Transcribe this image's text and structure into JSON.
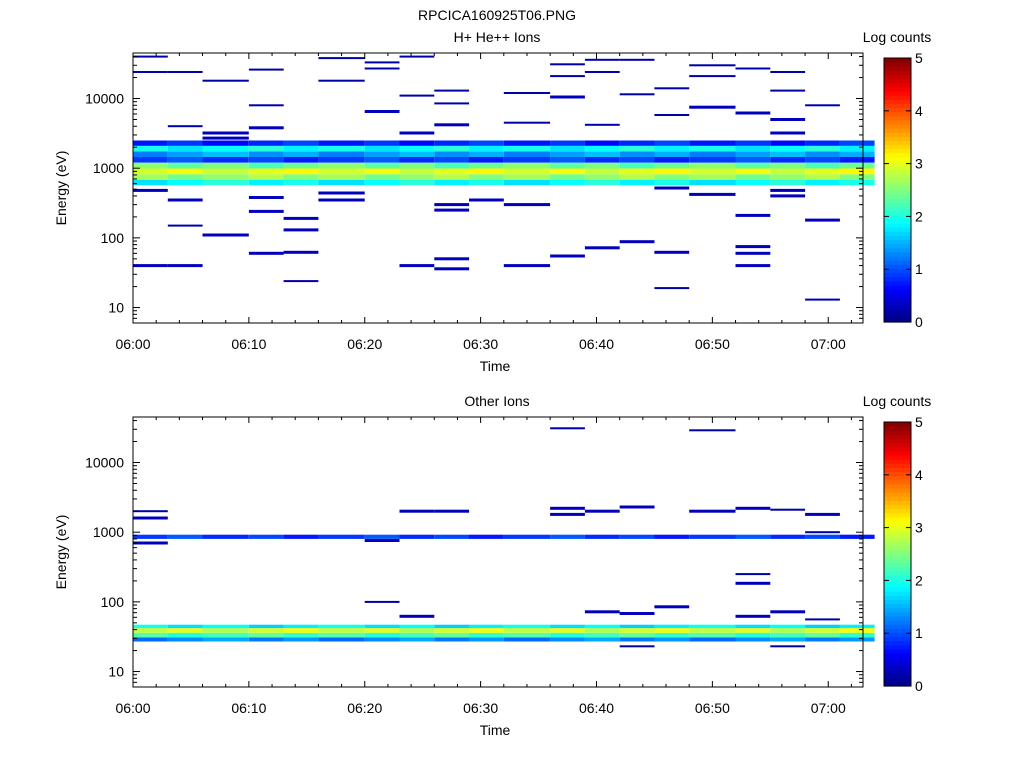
{
  "figure_title": "RPCICA160925T06.PNG",
  "chart_data": [
    {
      "type": "heatmap",
      "title": "H+ He++ Ions",
      "xlabel": "Time",
      "ylabel": "Energy (eV)",
      "x_ticks": [
        "06:00",
        "06:10",
        "06:20",
        "06:30",
        "06:40",
        "06:50",
        "07:00"
      ],
      "x_range": [
        "06:00",
        "07:03"
      ],
      "y_scale": "log",
      "y_ticks": [
        "10",
        "100",
        "1000",
        "10000"
      ],
      "y_range": [
        6,
        45000
      ],
      "colorbar": {
        "label": "Log counts",
        "min": 0,
        "max": 5,
        "ticks": [
          "0",
          "1",
          "2",
          "3",
          "4",
          "5"
        ]
      },
      "time_bins": [
        "06:00",
        "06:03",
        "06:06",
        "06:10",
        "06:13",
        "06:16",
        "06:20",
        "06:23",
        "06:26",
        "06:29",
        "06:32",
        "06:36",
        "06:39",
        "06:42",
        "06:45",
        "06:48",
        "06:52",
        "06:55",
        "06:58",
        "07:01"
      ],
      "bands": [
        {
          "emin": 570,
          "emax": 680,
          "value": 1.9
        },
        {
          "emin": 680,
          "emax": 820,
          "value": 2.6
        },
        {
          "emin": 820,
          "emax": 990,
          "value": 3.0
        },
        {
          "emin": 990,
          "emax": 1200,
          "value": 2.4
        },
        {
          "emin": 1200,
          "emax": 1450,
          "value": 0.9
        },
        {
          "emin": 1450,
          "emax": 1750,
          "value": 1.4
        },
        {
          "emin": 1750,
          "emax": 2100,
          "value": 1.9
        },
        {
          "emin": 2100,
          "emax": 2500,
          "value": 0.8
        }
      ],
      "blips": [
        {
          "t": 0,
          "e": 40000,
          "v": 0.2
        },
        {
          "t": 0,
          "e": 24000,
          "v": 0.2
        },
        {
          "t": 0,
          "e": 480,
          "v": 0.3
        },
        {
          "t": 0,
          "e": 40,
          "v": 0.3
        },
        {
          "t": 1,
          "e": 24000,
          "v": 0.2
        },
        {
          "t": 1,
          "e": 4000,
          "v": 0.2
        },
        {
          "t": 1,
          "e": 350,
          "v": 0.3
        },
        {
          "t": 1,
          "e": 150,
          "v": 0.2
        },
        {
          "t": 1,
          "e": 40,
          "v": 0.3
        },
        {
          "t": 2,
          "e": 18000,
          "v": 0.2
        },
        {
          "t": 2,
          "e": 3200,
          "v": 0.3
        },
        {
          "t": 2,
          "e": 2700,
          "v": 0.3
        },
        {
          "t": 2,
          "e": 110,
          "v": 0.3
        },
        {
          "t": 3,
          "e": 26000,
          "v": 0.2
        },
        {
          "t": 3,
          "e": 8000,
          "v": 0.2
        },
        {
          "t": 3,
          "e": 3800,
          "v": 0.3
        },
        {
          "t": 3,
          "e": 380,
          "v": 0.3
        },
        {
          "t": 3,
          "e": 240,
          "v": 0.3
        },
        {
          "t": 3,
          "e": 60,
          "v": 0.3
        },
        {
          "t": 4,
          "e": 190,
          "v": 0.3
        },
        {
          "t": 4,
          "e": 130,
          "v": 0.3
        },
        {
          "t": 4,
          "e": 62,
          "v": 0.3
        },
        {
          "t": 4,
          "e": 24,
          "v": 0.2
        },
        {
          "t": 5,
          "e": 38000,
          "v": 0.2
        },
        {
          "t": 5,
          "e": 18000,
          "v": 0.2
        },
        {
          "t": 5,
          "e": 440,
          "v": 0.3
        },
        {
          "t": 5,
          "e": 350,
          "v": 0.3
        },
        {
          "t": 6,
          "e": 33000,
          "v": 0.2
        },
        {
          "t": 6,
          "e": 27000,
          "v": 0.2
        },
        {
          "t": 6,
          "e": 6500,
          "v": 0.3
        },
        {
          "t": 7,
          "e": 40000,
          "v": 0.2
        },
        {
          "t": 7,
          "e": 11000,
          "v": 0.2
        },
        {
          "t": 7,
          "e": 3200,
          "v": 0.3
        },
        {
          "t": 7,
          "e": 40,
          "v": 0.3
        },
        {
          "t": 8,
          "e": 13000,
          "v": 0.2
        },
        {
          "t": 8,
          "e": 8500,
          "v": 0.2
        },
        {
          "t": 8,
          "e": 4200,
          "v": 0.3
        },
        {
          "t": 8,
          "e": 300,
          "v": 0.3
        },
        {
          "t": 8,
          "e": 250,
          "v": 0.3
        },
        {
          "t": 8,
          "e": 50,
          "v": 0.3
        },
        {
          "t": 8,
          "e": 36,
          "v": 0.3
        },
        {
          "t": 9,
          "e": 350,
          "v": 0.3
        },
        {
          "t": 10,
          "e": 12000,
          "v": 0.2
        },
        {
          "t": 10,
          "e": 4500,
          "v": 0.2
        },
        {
          "t": 10,
          "e": 300,
          "v": 0.3
        },
        {
          "t": 10,
          "e": 40,
          "v": 0.3
        },
        {
          "t": 11,
          "e": 31000,
          "v": 0.2
        },
        {
          "t": 11,
          "e": 21000,
          "v": 0.2
        },
        {
          "t": 11,
          "e": 10500,
          "v": 0.3
        },
        {
          "t": 11,
          "e": 55,
          "v": 0.3
        },
        {
          "t": 12,
          "e": 36000,
          "v": 0.2
        },
        {
          "t": 12,
          "e": 24000,
          "v": 0.2
        },
        {
          "t": 12,
          "e": 4200,
          "v": 0.2
        },
        {
          "t": 12,
          "e": 72,
          "v": 0.3
        },
        {
          "t": 13,
          "e": 36000,
          "v": 0.2
        },
        {
          "t": 13,
          "e": 11500,
          "v": 0.2
        },
        {
          "t": 13,
          "e": 88,
          "v": 0.3
        },
        {
          "t": 14,
          "e": 14000,
          "v": 0.2
        },
        {
          "t": 14,
          "e": 5800,
          "v": 0.2
        },
        {
          "t": 14,
          "e": 520,
          "v": 0.3
        },
        {
          "t": 14,
          "e": 62,
          "v": 0.3
        },
        {
          "t": 14,
          "e": 19,
          "v": 0.2
        },
        {
          "t": 15,
          "e": 30000,
          "v": 0.2
        },
        {
          "t": 15,
          "e": 21000,
          "v": 0.2
        },
        {
          "t": 15,
          "e": 7500,
          "v": 0.3
        },
        {
          "t": 15,
          "e": 420,
          "v": 0.3
        },
        {
          "t": 16,
          "e": 27000,
          "v": 0.2
        },
        {
          "t": 16,
          "e": 6200,
          "v": 0.3
        },
        {
          "t": 16,
          "e": 210,
          "v": 0.3
        },
        {
          "t": 16,
          "e": 75,
          "v": 0.3
        },
        {
          "t": 16,
          "e": 60,
          "v": 0.3
        },
        {
          "t": 16,
          "e": 40,
          "v": 0.3
        },
        {
          "t": 17,
          "e": 24000,
          "v": 0.2
        },
        {
          "t": 17,
          "e": 13000,
          "v": 0.2
        },
        {
          "t": 17,
          "e": 5000,
          "v": 0.3
        },
        {
          "t": 17,
          "e": 3200,
          "v": 0.3
        },
        {
          "t": 17,
          "e": 480,
          "v": 0.3
        },
        {
          "t": 17,
          "e": 400,
          "v": 0.3
        },
        {
          "t": 18,
          "e": 8000,
          "v": 0.2
        },
        {
          "t": 18,
          "e": 180,
          "v": 0.3
        },
        {
          "t": 18,
          "e": 13,
          "v": 0.2
        }
      ]
    },
    {
      "type": "heatmap",
      "title": "Other Ions",
      "xlabel": "Time",
      "ylabel": "Energy (eV)",
      "x_ticks": [
        "06:00",
        "06:10",
        "06:20",
        "06:30",
        "06:40",
        "06:50",
        "07:00"
      ],
      "x_range": [
        "06:00",
        "07:03"
      ],
      "y_scale": "log",
      "y_ticks": [
        "10",
        "100",
        "1000",
        "10000"
      ],
      "y_range": [
        6,
        45000
      ],
      "colorbar": {
        "label": "Log counts",
        "min": 0,
        "max": 5,
        "ticks": [
          "0",
          "1",
          "2",
          "3",
          "4",
          "5"
        ]
      },
      "time_bins": [
        "06:00",
        "06:03",
        "06:06",
        "06:10",
        "06:13",
        "06:16",
        "06:20",
        "06:23",
        "06:26",
        "06:29",
        "06:32",
        "06:36",
        "06:39",
        "06:42",
        "06:45",
        "06:48",
        "06:52",
        "06:55",
        "06:58",
        "07:01"
      ],
      "bands": [
        {
          "emin": 27,
          "emax": 31,
          "value": 1.3
        },
        {
          "emin": 31,
          "emax": 36,
          "value": 2.2
        },
        {
          "emin": 36,
          "emax": 42,
          "value": 2.9
        },
        {
          "emin": 42,
          "emax": 47,
          "value": 1.8
        },
        {
          "emin": 800,
          "emax": 920,
          "value": 0.9
        }
      ],
      "blips": [
        {
          "t": 0,
          "e": 2000,
          "v": 0.2
        },
        {
          "t": 0,
          "e": 1600,
          "v": 0.3
        },
        {
          "t": 0,
          "e": 700,
          "v": 0.3
        },
        {
          "t": 6,
          "e": 760,
          "v": 0.3
        },
        {
          "t": 6,
          "e": 100,
          "v": 0.2
        },
        {
          "t": 7,
          "e": 2000,
          "v": 0.3
        },
        {
          "t": 7,
          "e": 62,
          "v": 0.3
        },
        {
          "t": 8,
          "e": 2000,
          "v": 0.3
        },
        {
          "t": 11,
          "e": 31000,
          "v": 0.2
        },
        {
          "t": 11,
          "e": 2200,
          "v": 0.3
        },
        {
          "t": 11,
          "e": 1800,
          "v": 0.3
        },
        {
          "t": 12,
          "e": 2000,
          "v": 0.3
        },
        {
          "t": 12,
          "e": 72,
          "v": 0.3
        },
        {
          "t": 13,
          "e": 2300,
          "v": 0.3
        },
        {
          "t": 13,
          "e": 68,
          "v": 0.3
        },
        {
          "t": 13,
          "e": 23,
          "v": 0.2
        },
        {
          "t": 14,
          "e": 85,
          "v": 0.3
        },
        {
          "t": 15,
          "e": 29000,
          "v": 0.2
        },
        {
          "t": 15,
          "e": 2000,
          "v": 0.3
        },
        {
          "t": 16,
          "e": 2200,
          "v": 0.3
        },
        {
          "t": 16,
          "e": 250,
          "v": 0.2
        },
        {
          "t": 16,
          "e": 185,
          "v": 0.3
        },
        {
          "t": 16,
          "e": 62,
          "v": 0.3
        },
        {
          "t": 17,
          "e": 2100,
          "v": 0.2
        },
        {
          "t": 17,
          "e": 72,
          "v": 0.3
        },
        {
          "t": 17,
          "e": 23,
          "v": 0.2
        },
        {
          "t": 18,
          "e": 1800,
          "v": 0.3
        },
        {
          "t": 18,
          "e": 1000,
          "v": 0.2
        },
        {
          "t": 18,
          "e": 56,
          "v": 0.2
        }
      ]
    }
  ]
}
